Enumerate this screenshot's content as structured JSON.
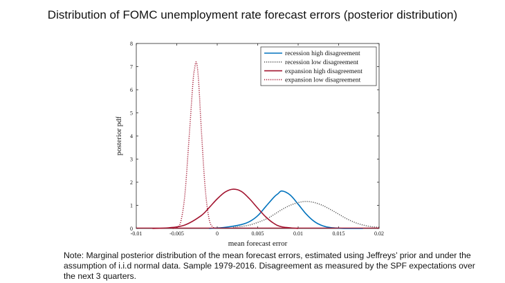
{
  "title": "Distribution of FOMC unemployment rate forecast errors (posterior distribution)",
  "note": "Note: Marginal posterior distribution of the mean forecast errors, estimated using Jeffreys’ prior and under the assumption of i.i.d normal data. Sample 1979-2016. Disagreement as measured by the SPF expectations over the next 3 quarters.",
  "chart_data": {
    "type": "line",
    "xlabel": "mean forecast error",
    "ylabel": "posterior pdf",
    "xlim": [
      -0.01,
      0.02
    ],
    "ylim": [
      0,
      8
    ],
    "x_ticks": [
      -0.01,
      -0.005,
      0,
      0.005,
      0.01,
      0.015,
      0.02
    ],
    "x_tick_labels": [
      "-0.01",
      "-0.005",
      "0",
      "0.005",
      "0.01",
      "0.015",
      "0.02"
    ],
    "y_ticks": [
      0,
      1,
      2,
      3,
      4,
      5,
      6,
      7,
      8
    ],
    "y_tick_labels": [
      "0",
      "1",
      "2",
      "3",
      "4",
      "5",
      "6",
      "7",
      "8"
    ],
    "grid": false,
    "legend_position": "top-right",
    "series": [
      {
        "name": "recession high disagreement",
        "color": "#0072BD",
        "style": "solid",
        "x": [
          -0.001,
          0.001,
          0.003,
          0.004,
          0.005,
          0.006,
          0.007,
          0.0075,
          0.008,
          0.009,
          0.01,
          0.011,
          0.012,
          0.013,
          0.014,
          0.016,
          0.018
        ],
        "y": [
          0.0,
          0.05,
          0.17,
          0.3,
          0.55,
          0.95,
          1.35,
          1.5,
          1.62,
          1.45,
          1.05,
          0.62,
          0.3,
          0.12,
          0.04,
          0.0,
          0.0
        ]
      },
      {
        "name": "recession low disagreement",
        "color": "#555555",
        "style": "dotted",
        "x": [
          0.002,
          0.004,
          0.006,
          0.007,
          0.008,
          0.009,
          0.01,
          0.011,
          0.012,
          0.013,
          0.014,
          0.015,
          0.016,
          0.017,
          0.018,
          0.019,
          0.02
        ],
        "y": [
          0.05,
          0.15,
          0.4,
          0.6,
          0.82,
          1.0,
          1.12,
          1.17,
          1.12,
          1.0,
          0.82,
          0.62,
          0.42,
          0.26,
          0.15,
          0.08,
          0.05
        ]
      },
      {
        "name": "expansion high disagreement",
        "color": "#A2142F",
        "style": "solid",
        "x": [
          -0.008,
          -0.006,
          -0.004,
          -0.002,
          -0.001,
          0.0,
          0.001,
          0.002,
          0.003,
          0.004,
          0.005,
          0.006,
          0.007,
          0.008,
          0.01
        ],
        "y": [
          0.0,
          0.03,
          0.15,
          0.55,
          0.9,
          1.28,
          1.58,
          1.7,
          1.6,
          1.28,
          0.88,
          0.5,
          0.22,
          0.07,
          0.0
        ]
      },
      {
        "name": "expansion low disagreement",
        "color": "#A2142F",
        "style": "dotted",
        "x": [
          -0.0055,
          -0.005,
          -0.0045,
          -0.004,
          -0.0035,
          -0.003,
          -0.0028,
          -0.0026,
          -0.0024,
          -0.0022,
          -0.002,
          -0.0015,
          -0.001,
          -0.0005,
          0.0
        ],
        "y": [
          0.0,
          0.03,
          0.3,
          1.45,
          3.8,
          6.3,
          6.9,
          7.2,
          6.8,
          5.8,
          4.5,
          1.8,
          0.4,
          0.05,
          0.0
        ]
      }
    ]
  }
}
